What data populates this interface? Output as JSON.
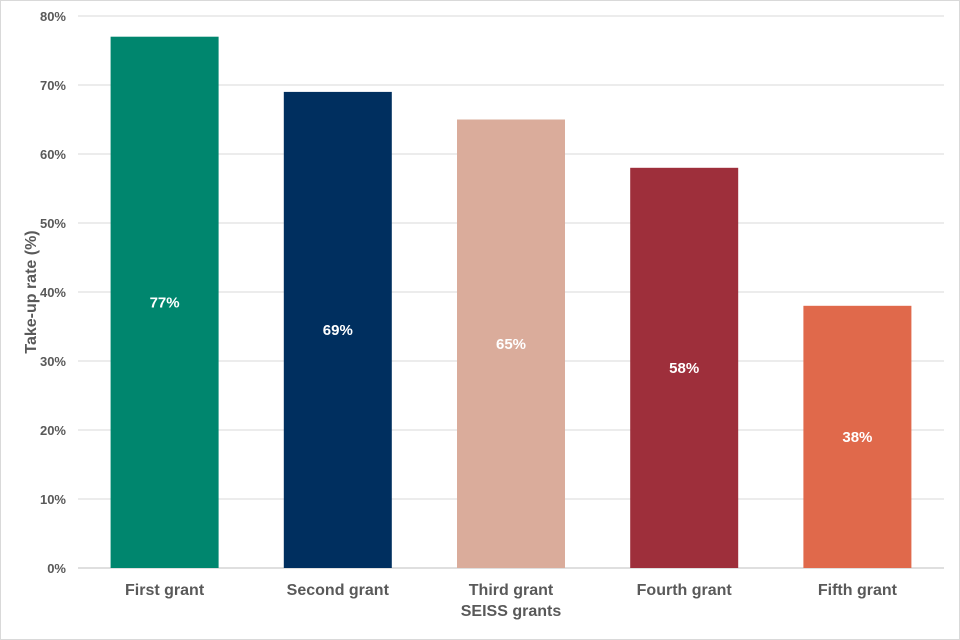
{
  "chart_data": {
    "type": "bar",
    "title": "",
    "xlabel": "SEISS grants",
    "ylabel": "Take-up rate (%)",
    "categories": [
      "First grant",
      "Second grant",
      "Third grant",
      "Fourth grant",
      "Fifth grant"
    ],
    "values": [
      77,
      69,
      65,
      58,
      38
    ],
    "data_labels": [
      "77%",
      "69%",
      "65%",
      "58%",
      "38%"
    ],
    "colors": [
      "#00866E",
      "#002F5F",
      "#DAAC9B",
      "#9E2F3B",
      "#E0694B"
    ],
    "ylim": [
      0,
      80
    ],
    "yticks": [
      0,
      10,
      20,
      30,
      40,
      50,
      60,
      70,
      80
    ],
    "ytick_labels": [
      "0%",
      "10%",
      "20%",
      "30%",
      "40%",
      "50%",
      "60%",
      "70%",
      "80%"
    ],
    "grid": true,
    "legend": "none"
  }
}
